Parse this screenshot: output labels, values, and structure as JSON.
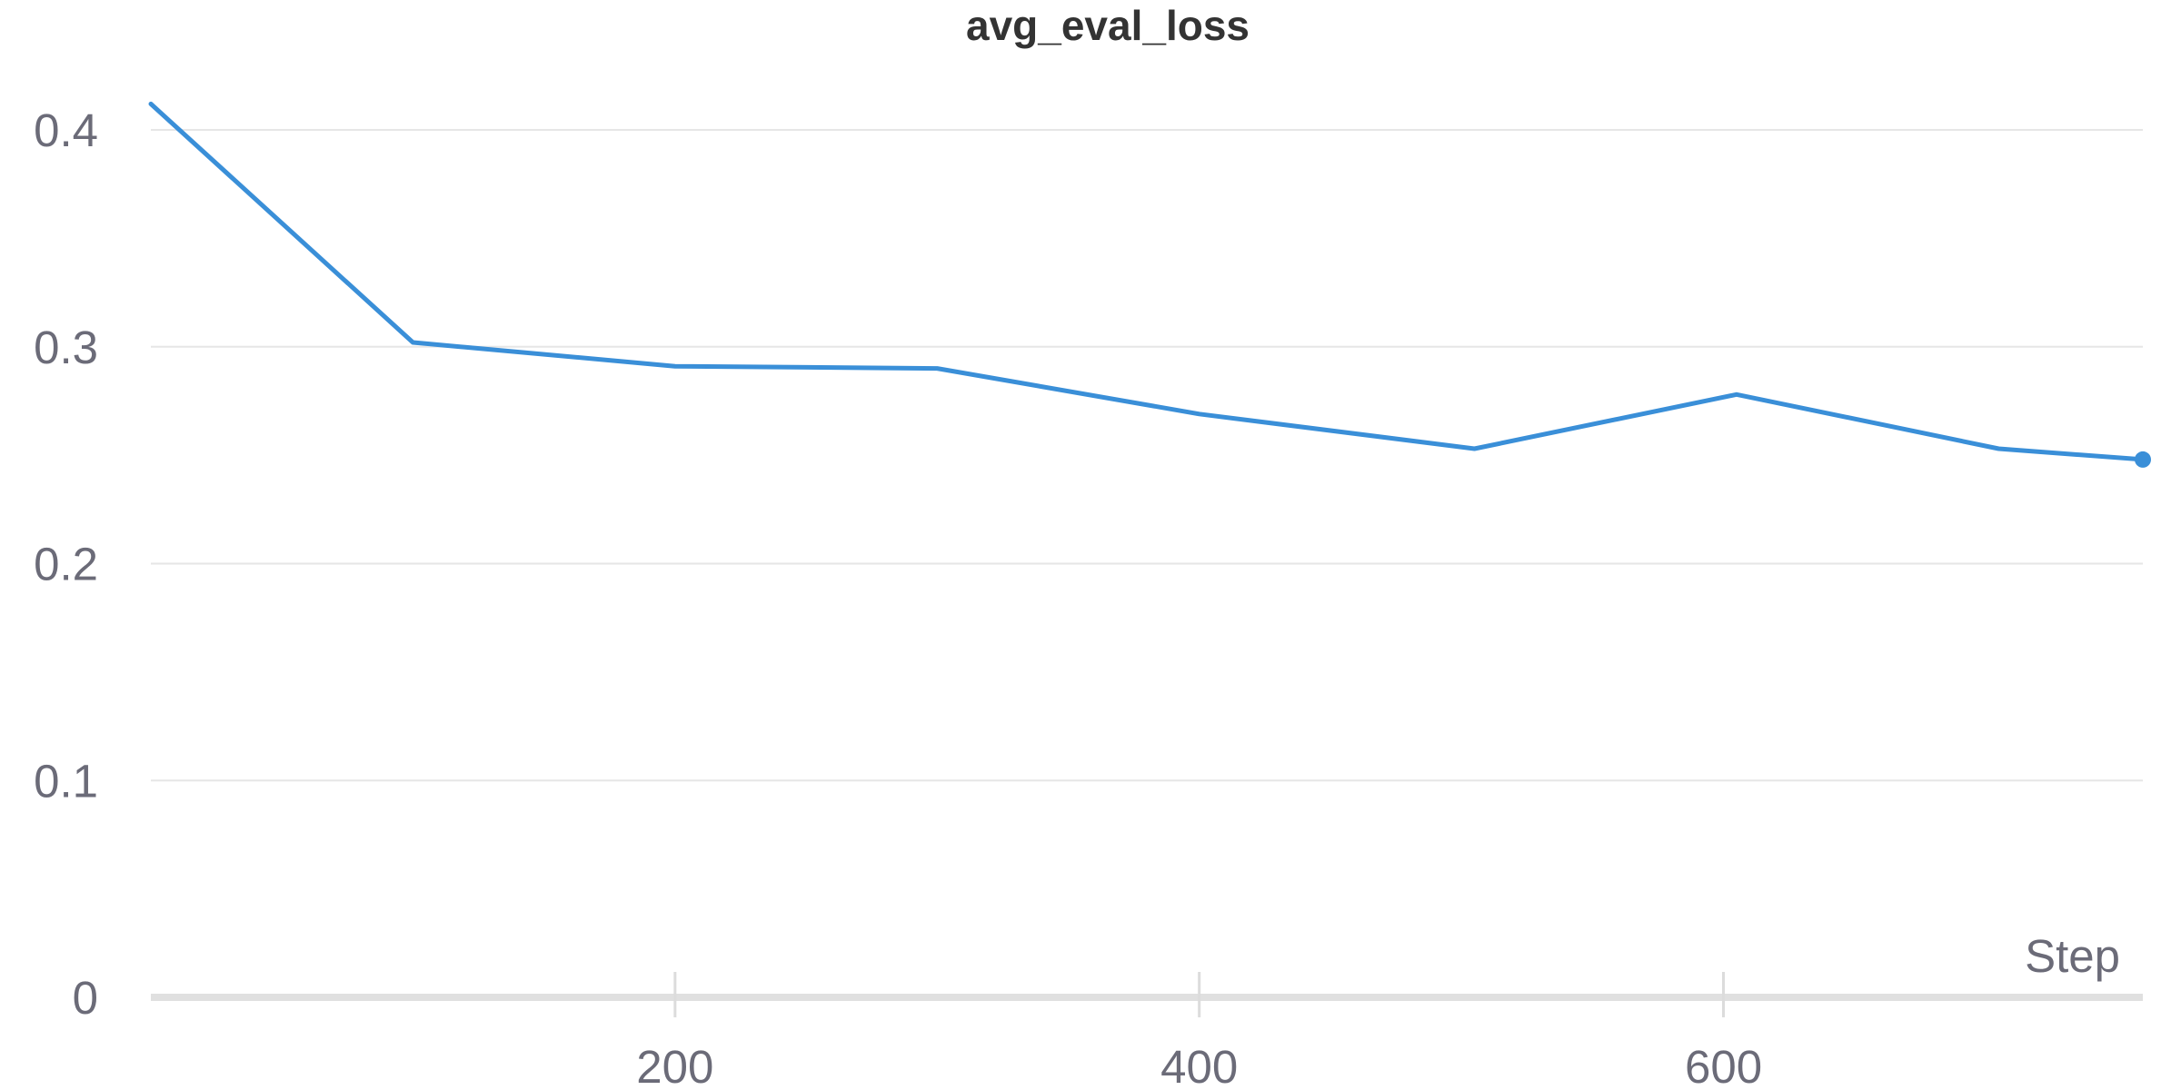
{
  "chart_data": {
    "type": "line",
    "title": "avg_eval_loss",
    "xlabel": "Step",
    "ylabel": "",
    "xlim": [
      0,
      760
    ],
    "ylim": [
      0,
      0.4
    ],
    "x_ticks": [
      200,
      400,
      600
    ],
    "y_ticks": [
      0,
      0.1,
      0.2,
      0.3,
      0.4
    ],
    "grid": true,
    "series": [
      {
        "color": "#3a8fd8",
        "x": [
          0,
          100,
          200,
          300,
          400,
          505,
          605,
          705,
          760
        ],
        "y": [
          0.412,
          0.302,
          0.291,
          0.29,
          0.269,
          0.253,
          0.278,
          0.253,
          0.248
        ]
      }
    ]
  }
}
